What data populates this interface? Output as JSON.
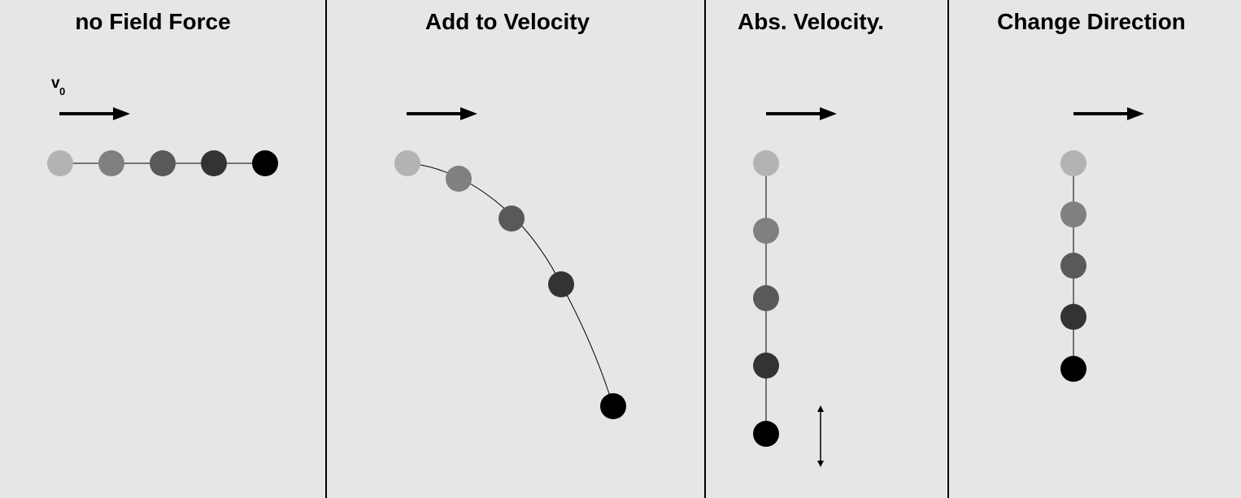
{
  "panels": [
    {
      "id": "no-field-force",
      "title": "no Field Force",
      "velocity_label": "v",
      "velocity_subscript": "0",
      "dot_colors": [
        "#b3b3b3",
        "#808080",
        "#595959",
        "#333333",
        "#000000"
      ]
    },
    {
      "id": "add-to-velocity",
      "title": "Add to Velocity",
      "dot_colors": [
        "#b3b3b3",
        "#808080",
        "#595959",
        "#333333",
        "#000000"
      ]
    },
    {
      "id": "abs-velocity",
      "title": "Abs. Velocity.",
      "dot_colors": [
        "#b3b3b3",
        "#808080",
        "#595959",
        "#333333",
        "#000000"
      ]
    },
    {
      "id": "change-direction",
      "title": "Change Direction",
      "dot_colors": [
        "#b3b3b3",
        "#808080",
        "#595959",
        "#333333",
        "#000000"
      ]
    }
  ],
  "colors": {
    "background": "#e6e6e6",
    "ink": "#000000"
  }
}
